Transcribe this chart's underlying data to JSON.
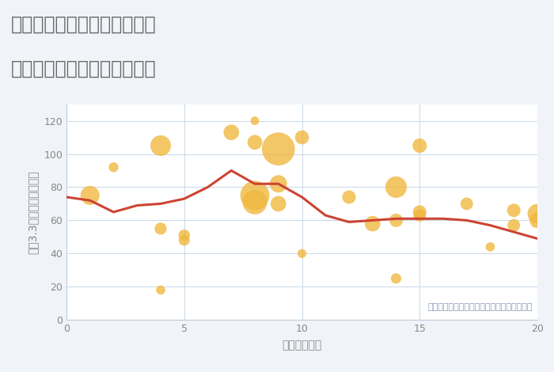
{
  "title_line1": "愛知県稲沢市平和町須ヶ谷の",
  "title_line2": "駅距離別中古マンション価格",
  "xlabel": "駅距離（分）",
  "ylabel": "坪（3.3㎡）単価（万円）",
  "background_color": "#f0f4f8",
  "plot_bg_color": "#ffffff",
  "xlim": [
    0,
    20
  ],
  "ylim": [
    0,
    130
  ],
  "xticks": [
    0,
    5,
    10,
    15,
    20
  ],
  "yticks": [
    0,
    20,
    40,
    60,
    80,
    100,
    120
  ],
  "scatter_x": [
    1,
    2,
    4,
    4,
    4,
    5,
    5,
    7,
    8,
    8,
    8,
    8,
    9,
    9,
    9,
    10,
    10,
    12,
    13,
    14,
    14,
    14,
    15,
    15,
    15,
    17,
    18,
    19,
    19,
    20,
    20
  ],
  "scatter_y": [
    75,
    92,
    105,
    55,
    18,
    48,
    51,
    113,
    120,
    107,
    75,
    71,
    103,
    82,
    70,
    110,
    40,
    74,
    58,
    80,
    60,
    25,
    105,
    63,
    65,
    70,
    44,
    66,
    57,
    64,
    60
  ],
  "scatter_size": [
    300,
    80,
    350,
    120,
    70,
    100,
    110,
    200,
    60,
    180,
    700,
    500,
    900,
    250,
    200,
    160,
    65,
    150,
    200,
    380,
    150,
    90,
    170,
    130,
    150,
    130,
    70,
    150,
    130,
    320,
    200
  ],
  "scatter_color": "#f0b840",
  "scatter_alpha": 0.8,
  "line_x": [
    0,
    1,
    2,
    3,
    4,
    5,
    6,
    7,
    8,
    9,
    10,
    11,
    12,
    13,
    14,
    15,
    16,
    17,
    18,
    19,
    20
  ],
  "line_y": [
    74,
    72,
    65,
    69,
    70,
    73,
    80,
    90,
    82,
    82,
    74,
    63,
    59,
    60,
    61,
    61,
    61,
    60,
    57,
    53,
    49
  ],
  "line_color": "#cc4433",
  "line_width": 2.2,
  "annotation": "円の大きさは、取引のあった物件面積を示す",
  "annotation_color": "#8899bb",
  "grid_color": "#c8d8e8",
  "title_color": "#666666",
  "label_color": "#888888",
  "tick_color": "#888888",
  "spine_color": "#c0ccd8"
}
